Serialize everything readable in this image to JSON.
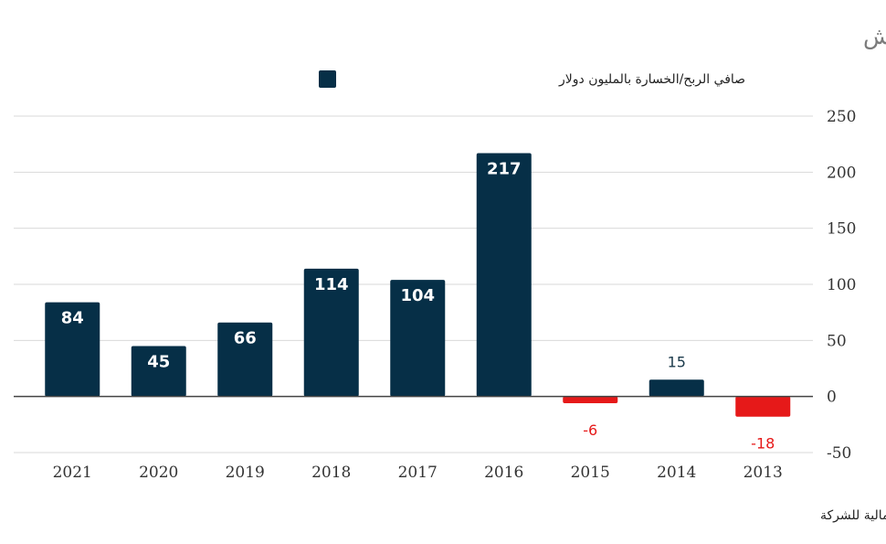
{
  "chart_data": {
    "type": "bar",
    "title": "تطور أرباح جي إف إتش",
    "source": "المصدر : القوائم المالية للشركة",
    "categories": [
      "2021",
      "2020",
      "2019",
      "2018",
      "2017",
      "2016",
      "2015",
      "2014",
      "2013"
    ],
    "series": [
      {
        "name": "صافي الربح/الخسارة بالمليون دولار",
        "values": [
          84,
          45,
          66,
          114,
          104,
          217,
          -6,
          15,
          -18
        ],
        "data_labels": [
          "84",
          "45",
          "66",
          "114",
          "104",
          "217",
          "-6",
          "15",
          "-18"
        ]
      }
    ],
    "y_ticks": [
      "250",
      "200",
      "150",
      "100",
      "50",
      "0",
      "-50"
    ],
    "ylim": [
      -50,
      250
    ],
    "xlabel": "",
    "ylabel": "",
    "y_axis_side": "right",
    "grid": true,
    "legend": "top-center",
    "colors": {
      "positive": "#062f47",
      "negative": "#e61919",
      "grid": "#d9d9d9",
      "zero_line": "#444444",
      "title": "#7b7b7b"
    }
  }
}
